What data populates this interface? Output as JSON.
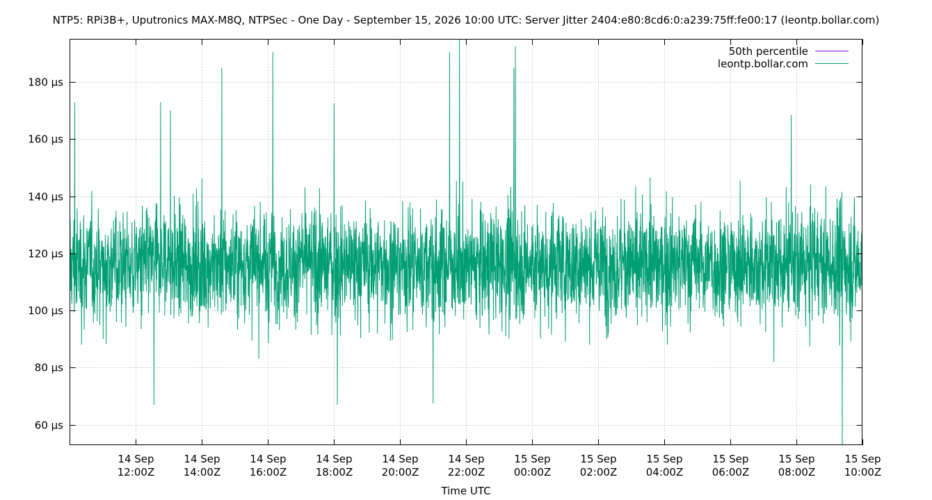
{
  "chart_data": {
    "type": "line",
    "title": "NTP5: RPi3B+, Uputronics MAX-M8Q, NTPSec - One Day - September 15, 2026 10:00 UTC: Server Jitter 2404:e80:8cd6:0:a239:75ff:fe00:17 (leontp.bollar.com)",
    "xlabel": "Time UTC",
    "ylabel": "",
    "x_range_hours": [
      -24,
      0
    ],
    "ylim": [
      53,
      195
    ],
    "grid": true,
    "legend_position": "top-right",
    "y_ticks": [
      {
        "value": 60,
        "label": "60 µs"
      },
      {
        "value": 80,
        "label": "80 µs"
      },
      {
        "value": 100,
        "label": "100 µs"
      },
      {
        "value": 120,
        "label": "120 µs"
      },
      {
        "value": 140,
        "label": "140 µs"
      },
      {
        "value": 160,
        "label": "160 µs"
      },
      {
        "value": 180,
        "label": "180 µs"
      }
    ],
    "x_ticks": [
      {
        "hour": -22,
        "date": "14 Sep",
        "time": "12:00Z"
      },
      {
        "hour": -20,
        "date": "14 Sep",
        "time": "14:00Z"
      },
      {
        "hour": -18,
        "date": "14 Sep",
        "time": "16:00Z"
      },
      {
        "hour": -16,
        "date": "14 Sep",
        "time": "18:00Z"
      },
      {
        "hour": -14,
        "date": "14 Sep",
        "time": "20:00Z"
      },
      {
        "hour": -12,
        "date": "14 Sep",
        "time": "22:00Z"
      },
      {
        "hour": -10,
        "date": "15 Sep",
        "time": "00:00Z"
      },
      {
        "hour": -8,
        "date": "15 Sep",
        "time": "02:00Z"
      },
      {
        "hour": -6,
        "date": "15 Sep",
        "time": "04:00Z"
      },
      {
        "hour": -4,
        "date": "15 Sep",
        "time": "06:00Z"
      },
      {
        "hour": -2,
        "date": "15 Sep",
        "time": "08:00Z"
      },
      {
        "hour": 0,
        "date": "15 Sep",
        "time": "10:00Z"
      }
    ],
    "series": [
      {
        "name": "50th percentile",
        "color": "#9400d3",
        "values": []
      },
      {
        "name": "leontp.bollar.com",
        "color": "#009e73",
        "band": {
          "typical_low": 88,
          "typical_high": 145,
          "median": 116
        },
        "spikes": [
          {
            "hour": -23.85,
            "value": 173
          },
          {
            "hour": -21.25,
            "value": 173
          },
          {
            "hour": -20.95,
            "value": 170
          },
          {
            "hour": -19.4,
            "value": 185
          },
          {
            "hour": -17.85,
            "value": 190.5
          },
          {
            "hour": -16.0,
            "value": 172.5
          },
          {
            "hour": -12.5,
            "value": 190.5
          },
          {
            "hour": -12.2,
            "value": 195
          },
          {
            "hour": -10.5,
            "value": 192.5
          },
          {
            "hour": -10.55,
            "value": 185
          },
          {
            "hour": -2.15,
            "value": 168.5
          },
          {
            "hour": -21.45,
            "value": 67
          },
          {
            "hour": -15.9,
            "value": 67
          },
          {
            "hour": -13.0,
            "value": 67.5
          },
          {
            "hour": -0.6,
            "value": 53
          }
        ]
      }
    ]
  }
}
